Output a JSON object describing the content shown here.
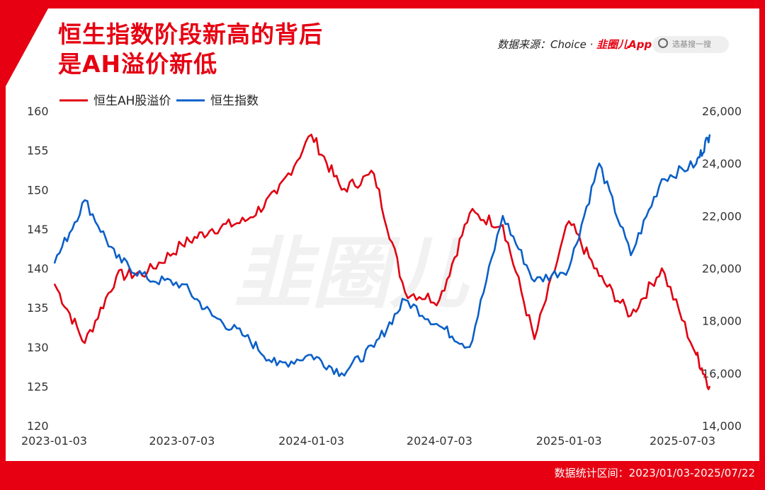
{
  "header": {
    "title_line1": "恒生指数阶段新高的背后",
    "title_line2": "是AH溢价新低",
    "source_prefix": "数据来源：Choice · ",
    "source_brand": "韭圈儿App",
    "search_placeholder": "选基搜一搜"
  },
  "footer": {
    "range_text": "数据统计区间：2023/01/03-2025/07/22"
  },
  "colors": {
    "red": "#e00010",
    "blue": "#0a5fc8",
    "frame": "#e60012"
  },
  "watermark": "韭圈儿",
  "chart_data": {
    "type": "line",
    "x_dates": [
      "2023-01-03",
      "2023-02-15",
      "2023-04-01",
      "2023-05-15",
      "2023-07-03",
      "2023-08-15",
      "2023-10-01",
      "2023-11-15",
      "2024-01-03",
      "2024-02-15",
      "2024-04-01",
      "2024-05-15",
      "2024-07-03",
      "2024-08-15",
      "2024-10-01",
      "2024-11-15",
      "2025-01-03",
      "2025-02-15",
      "2025-04-01",
      "2025-05-15",
      "2025-07-03",
      "2025-07-22"
    ],
    "x_tick_labels": [
      "2023-01-03",
      "2023-07-03",
      "2024-01-03",
      "2024-07-03",
      "2025-01-03",
      "2025-07-03"
    ],
    "left_axis": {
      "ticks": [
        "160",
        "155",
        "150",
        "145",
        "140",
        "135",
        "130",
        "125",
        "120"
      ],
      "min": 120,
      "max": 160
    },
    "right_axis": {
      "ticks": [
        "26,000",
        "24,000",
        "22,000",
        "20,000",
        "18,000",
        "16,000",
        "14,000"
      ],
      "min": 14000,
      "max": 26000
    },
    "series": [
      {
        "name": "恒生AH股溢价",
        "color": "#e00010",
        "axis": "left",
        "values": [
          138,
          130.5,
          139,
          139.5,
          143,
          145,
          146,
          149.5,
          157,
          150,
          152,
          137,
          136,
          147,
          145.5,
          131,
          146,
          139,
          134,
          140,
          129,
          125
        ]
      },
      {
        "name": "恒生指数",
        "color": "#0a5fc8",
        "axis": "right",
        "values": [
          20200,
          22600,
          20400,
          19600,
          19400,
          18200,
          17400,
          16300,
          16700,
          16000,
          17000,
          18800,
          17800,
          17000,
          22000,
          19500,
          20000,
          24000,
          20500,
          23400,
          24000,
          25100
        ]
      }
    ]
  }
}
